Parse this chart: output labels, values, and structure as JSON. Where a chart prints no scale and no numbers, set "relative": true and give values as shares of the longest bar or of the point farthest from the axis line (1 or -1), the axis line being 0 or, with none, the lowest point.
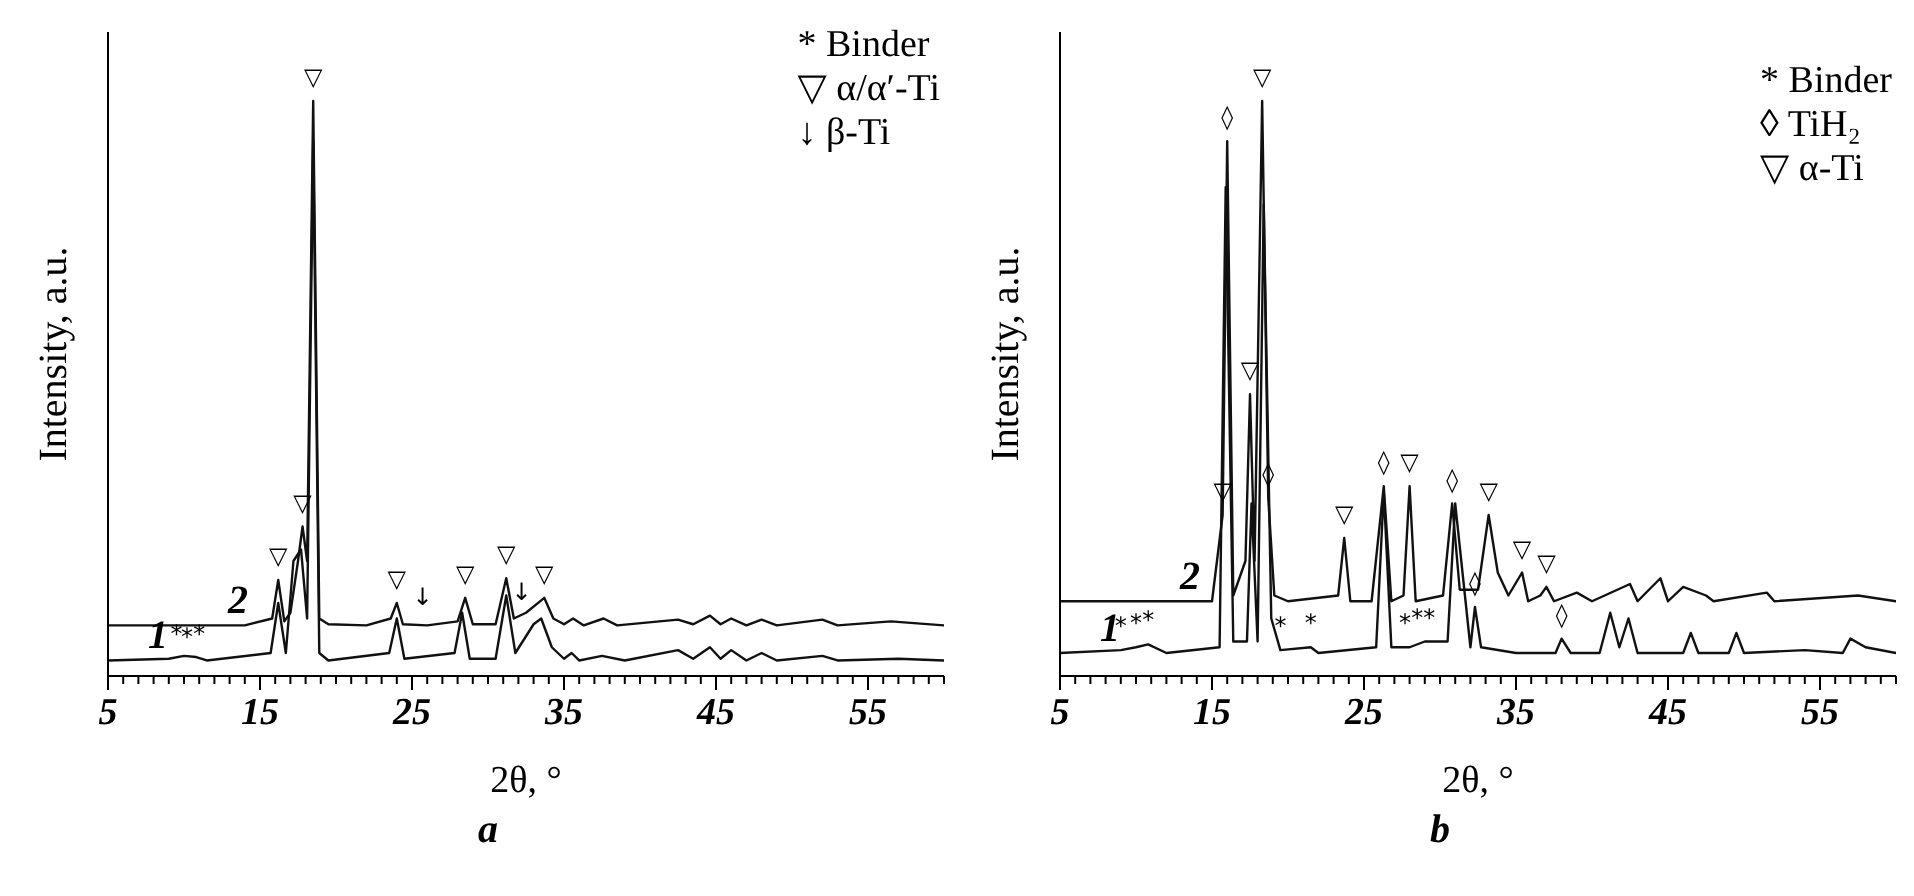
{
  "chart_data": [
    {
      "type": "line",
      "title": "a",
      "xlabel": "2θ, °",
      "ylabel": "Intensity, a.u.",
      "relative": true,
      "xlim": [
        5,
        60
      ],
      "xticks": [
        5,
        {
          "value": 6,
          "label": null
        },
        {
          "value": 7,
          "label": null
        },
        {
          "value": 8,
          "label": null
        },
        {
          "value": 9,
          "label": null
        },
        {
          "value": 10,
          "label": null
        },
        {
          "value": 11,
          "label": null
        },
        {
          "value": 12,
          "label": null
        },
        {
          "value": 13,
          "label": null
        },
        {
          "value": 14,
          "label": null
        },
        15,
        {
          "value": 16,
          "label": null
        },
        {
          "value": 17,
          "label": null
        },
        {
          "value": 18,
          "label": null
        },
        {
          "value": 19,
          "label": null
        },
        {
          "value": 20,
          "label": null
        },
        {
          "value": 21,
          "label": null
        },
        {
          "value": 22,
          "label": null
        },
        {
          "value": 23,
          "label": null
        },
        {
          "value": 24,
          "label": null
        },
        25,
        {
          "value": 26,
          "label": null
        },
        {
          "value": 27,
          "label": null
        },
        {
          "value": 28,
          "label": null
        },
        {
          "value": 29,
          "label": null
        },
        {
          "value": 30,
          "label": null
        },
        {
          "value": 31,
          "label": null
        },
        {
          "value": 32,
          "label": null
        },
        {
          "value": 33,
          "label": null
        },
        {
          "value": 34,
          "label": null
        },
        35,
        {
          "value": 36,
          "label": null
        },
        {
          "value": 37,
          "label": null
        },
        {
          "value": 38,
          "label": null
        },
        {
          "value": 39,
          "label": null
        },
        {
          "value": 40,
          "label": null
        },
        {
          "value": 41,
          "label": null
        },
        {
          "value": 42,
          "label": null
        },
        {
          "value": 43,
          "label": null
        },
        {
          "value": 44,
          "label": null
        },
        45,
        {
          "value": 46,
          "label": null
        },
        {
          "value": 47,
          "label": null
        },
        {
          "value": 48,
          "label": null
        },
        {
          "value": 49,
          "label": null
        },
        {
          "value": 50,
          "label": null
        },
        {
          "value": 51,
          "label": null
        },
        {
          "value": 52,
          "label": null
        },
        {
          "value": 53,
          "label": null
        },
        {
          "value": 54,
          "label": null
        },
        55,
        {
          "value": 56,
          "label": null
        },
        {
          "value": 57,
          "label": null
        },
        {
          "value": 58,
          "label": null
        },
        {
          "value": 59,
          "label": null
        },
        {
          "value": 60,
          "label": null
        }
      ],
      "series": [
        {
          "name": "1",
          "color": "#111111",
          "x": [
            5,
            9,
            10,
            10.8,
            11.5,
            15.7,
            16.2,
            16.7,
            17.2,
            17.7,
            18.1,
            18.5,
            18.9,
            19.5,
            23.5,
            24,
            24.5,
            27.8,
            28.3,
            28.8,
            30.5,
            31.2,
            31.8,
            33.0,
            33.5,
            34.2,
            35,
            35.5,
            36,
            37.5,
            39,
            42.5,
            43.5,
            44.6,
            45.3,
            46,
            47,
            48,
            49,
            52,
            53,
            57,
            60
          ],
          "values": [
            0.027,
            0.03,
            0.035,
            0.033,
            0.027,
            0.04,
            0.127,
            0.04,
            0.2,
            0.22,
            0.1,
            0.93,
            0.04,
            0.027,
            0.04,
            0.1,
            0.03,
            0.04,
            0.11,
            0.03,
            0.03,
            0.14,
            0.04,
            0.09,
            0.1,
            0.05,
            0.03,
            0.04,
            0.027,
            0.035,
            0.027,
            0.045,
            0.03,
            0.05,
            0.03,
            0.045,
            0.027,
            0.04,
            0.027,
            0.035,
            0.027,
            0.03,
            0.027
          ]
        },
        {
          "name": "2",
          "color": "#111111",
          "x": [
            5,
            10,
            14,
            15.8,
            16.2,
            16.6,
            17.0,
            17.5,
            17.8,
            18.1,
            18.5,
            18.9,
            19.5,
            22,
            23.6,
            24.0,
            24.4,
            26,
            28,
            28.5,
            29,
            30.5,
            31.2,
            31.7,
            32.5,
            33.2,
            33.7,
            34.3,
            35,
            35.6,
            36.3,
            37.6,
            38.5,
            42.5,
            43.5,
            44.6,
            45.3,
            46,
            47,
            48,
            49,
            52,
            53,
            56.5,
            60
          ],
          "values": [
            0.088,
            0.088,
            0.088,
            0.1,
            0.167,
            0.095,
            0.11,
            0.2,
            0.26,
            0.2,
            1.0,
            0.1,
            0.09,
            0.088,
            0.1,
            0.127,
            0.09,
            0.088,
            0.095,
            0.136,
            0.09,
            0.09,
            0.17,
            0.1,
            0.11,
            0.125,
            0.136,
            0.1,
            0.09,
            0.1,
            0.088,
            0.1,
            0.088,
            0.098,
            0.09,
            0.105,
            0.09,
            0.1,
            0.088,
            0.098,
            0.088,
            0.098,
            0.088,
            0.095,
            0.088
          ]
        }
      ],
      "annotations": [
        "* Binder",
        "▽ α/α′-Ti",
        "↓ β-Ti",
        {
          "text": "▽",
          "x": 16.2,
          "y": 0.167
        },
        {
          "text": "▽",
          "x": 17.8,
          "y": 0.26
        },
        {
          "text": "▽",
          "x": 18.5,
          "y": 1.0
        },
        {
          "text": "▽",
          "x": 24,
          "y": 0.127
        },
        {
          "text": "↓",
          "x": 25.7,
          "y": 0.095
        },
        {
          "text": "▽",
          "x": 28.5,
          "y": 0.136
        },
        {
          "text": "▽",
          "x": 31.2,
          "y": 0.17
        },
        {
          "text": "↓",
          "x": 32.2,
          "y": 0.105
        },
        {
          "text": "▽",
          "x": 33.7,
          "y": 0.136
        },
        {
          "text": "*",
          "x": 9.5,
          "y": 0.032
        },
        {
          "text": "*",
          "x": 10.2,
          "y": 0.026
        },
        {
          "text": "*",
          "x": 11,
          "y": 0.032
        }
      ]
    },
    {
      "type": "line",
      "title": "b",
      "xlabel": "2θ, °",
      "ylabel": "Intensity, a.u.",
      "relative": true,
      "xlim": [
        5,
        60
      ],
      "xticks": [
        5,
        {
          "value": 6,
          "label": null
        },
        {
          "value": 7,
          "label": null
        },
        {
          "value": 8,
          "label": null
        },
        {
          "value": 9,
          "label": null
        },
        {
          "value": 10,
          "label": null
        },
        {
          "value": 11,
          "label": null
        },
        {
          "value": 12,
          "label": null
        },
        {
          "value": 13,
          "label": null
        },
        {
          "value": 14,
          "label": null
        },
        15,
        {
          "value": 16,
          "label": null
        },
        {
          "value": 17,
          "label": null
        },
        {
          "value": 18,
          "label": null
        },
        {
          "value": 19,
          "label": null
        },
        {
          "value": 20,
          "label": null
        },
        {
          "value": 21,
          "label": null
        },
        {
          "value": 22,
          "label": null
        },
        {
          "value": 23,
          "label": null
        },
        {
          "value": 24,
          "label": null
        },
        25,
        {
          "value": 26,
          "label": null
        },
        {
          "value": 27,
          "label": null
        },
        {
          "value": 28,
          "label": null
        },
        {
          "value": 29,
          "label": null
        },
        {
          "value": 30,
          "label": null
        },
        {
          "value": 31,
          "label": null
        },
        {
          "value": 32,
          "label": null
        },
        {
          "value": 33,
          "label": null
        },
        {
          "value": 34,
          "label": null
        },
        35,
        {
          "value": 36,
          "label": null
        },
        {
          "value": 37,
          "label": null
        },
        {
          "value": 38,
          "label": null
        },
        {
          "value": 39,
          "label": null
        },
        {
          "value": 40,
          "label": null
        },
        {
          "value": 41,
          "label": null
        },
        {
          "value": 42,
          "label": null
        },
        {
          "value": 43,
          "label": null
        },
        {
          "value": 44,
          "label": null
        },
        45,
        {
          "value": 46,
          "label": null
        },
        {
          "value": 47,
          "label": null
        },
        {
          "value": 48,
          "label": null
        },
        {
          "value": 49,
          "label": null
        },
        {
          "value": 50,
          "label": null
        },
        {
          "value": 51,
          "label": null
        },
        {
          "value": 52,
          "label": null
        },
        {
          "value": 53,
          "label": null
        },
        {
          "value": 54,
          "label": null
        },
        55,
        {
          "value": 56,
          "label": null
        },
        {
          "value": 57,
          "label": null
        },
        {
          "value": 58,
          "label": null
        },
        {
          "value": 59,
          "label": null
        },
        {
          "value": 60,
          "label": null
        }
      ],
      "series": [
        {
          "name": "1",
          "color": "#111111",
          "x": [
            5,
            9,
            10,
            10.8,
            12,
            15.5,
            15.9,
            16.4,
            17.3,
            17.6,
            18.0,
            18.4,
            18.9,
            19.5,
            21.5,
            22,
            25.8,
            26.3,
            26.8,
            28,
            29,
            30.5,
            31.0,
            31.6,
            32.0,
            32.3,
            32.7,
            35,
            37.6,
            38,
            38.6,
            40.5,
            41.2,
            41.8,
            42.4,
            43,
            46,
            46.5,
            47,
            49,
            49.5,
            50,
            54,
            56.5,
            57,
            58,
            60
          ],
          "values": [
            0.04,
            0.045,
            0.05,
            0.055,
            0.04,
            0.05,
            0.85,
            0.06,
            0.06,
            0.3,
            0.06,
            0.82,
            0.1,
            0.045,
            0.05,
            0.04,
            0.05,
            0.32,
            0.05,
            0.05,
            0.06,
            0.06,
            0.3,
            0.15,
            0.05,
            0.12,
            0.05,
            0.04,
            0.04,
            0.065,
            0.04,
            0.04,
            0.11,
            0.05,
            0.1,
            0.04,
            0.04,
            0.075,
            0.04,
            0.04,
            0.075,
            0.04,
            0.045,
            0.04,
            0.065,
            0.05,
            0.04
          ]
        },
        {
          "name": "2",
          "color": "#111111",
          "x": [
            5,
            10,
            15,
            15.7,
            16.0,
            16.4,
            17.2,
            17.5,
            17.8,
            18.3,
            18.7,
            19.1,
            20,
            23.3,
            23.7,
            24.1,
            25.5,
            26.3,
            26.8,
            27.6,
            28.0,
            28.4,
            30.2,
            30.8,
            31.3,
            32.5,
            33.2,
            33.8,
            34.5,
            35.4,
            35.8,
            36.6,
            37.0,
            37.5,
            39,
            40,
            42.5,
            43,
            44.5,
            45,
            46,
            47.5,
            48,
            51.5,
            52,
            57.5,
            60
          ],
          "values": [
            0.13,
            0.13,
            0.13,
            0.28,
            0.93,
            0.14,
            0.2,
            0.49,
            0.2,
            1.0,
            0.31,
            0.14,
            0.13,
            0.14,
            0.24,
            0.13,
            0.13,
            0.33,
            0.13,
            0.14,
            0.33,
            0.13,
            0.14,
            0.3,
            0.15,
            0.15,
            0.28,
            0.18,
            0.14,
            0.18,
            0.13,
            0.14,
            0.155,
            0.13,
            0.145,
            0.13,
            0.16,
            0.13,
            0.17,
            0.13,
            0.155,
            0.14,
            0.13,
            0.145,
            0.13,
            0.14,
            0.13
          ]
        }
      ],
      "annotations": [
        "* Binder",
        "◊ TiH₂",
        "▽ α-Ti",
        {
          "text": "▽",
          "x": 15.7,
          "y": 0.28
        },
        {
          "text": "◊",
          "x": 16.0,
          "y": 0.93
        },
        {
          "text": "▽",
          "x": 17.5,
          "y": 0.49
        },
        {
          "text": "▽",
          "x": 18.3,
          "y": 1.0
        },
        {
          "text": "◊",
          "x": 18.7,
          "y": 0.31
        },
        {
          "text": "▽",
          "x": 23.7,
          "y": 0.24
        },
        {
          "text": "◊",
          "x": 26.3,
          "y": 0.33
        },
        {
          "text": "▽",
          "x": 28.0,
          "y": 0.33
        },
        {
          "text": "◊",
          "x": 30.8,
          "y": 0.3
        },
        {
          "text": "◊",
          "x": 32.3,
          "y": 0.12
        },
        {
          "text": "▽",
          "x": 33.2,
          "y": 0.28
        },
        {
          "text": "▽",
          "x": 35.4,
          "y": 0.18
        },
        {
          "text": "▽",
          "x": 37.0,
          "y": 0.155
        },
        {
          "text": "◊",
          "x": 38.0,
          "y": 0.065
        },
        {
          "text": "*",
          "x": 9,
          "y": 0.045
        },
        {
          "text": "*",
          "x": 10,
          "y": 0.05
        },
        {
          "text": "*",
          "x": 10.8,
          "y": 0.055
        },
        {
          "text": "*",
          "x": 19.5,
          "y": 0.045
        },
        {
          "text": "*",
          "x": 21.5,
          "y": 0.05
        },
        {
          "text": "*",
          "x": 27.7,
          "y": 0.05
        },
        {
          "text": "*",
          "x": 28.5,
          "y": 0.06
        },
        {
          "text": "*",
          "x": 29.3,
          "y": 0.06
        }
      ]
    }
  ]
}
